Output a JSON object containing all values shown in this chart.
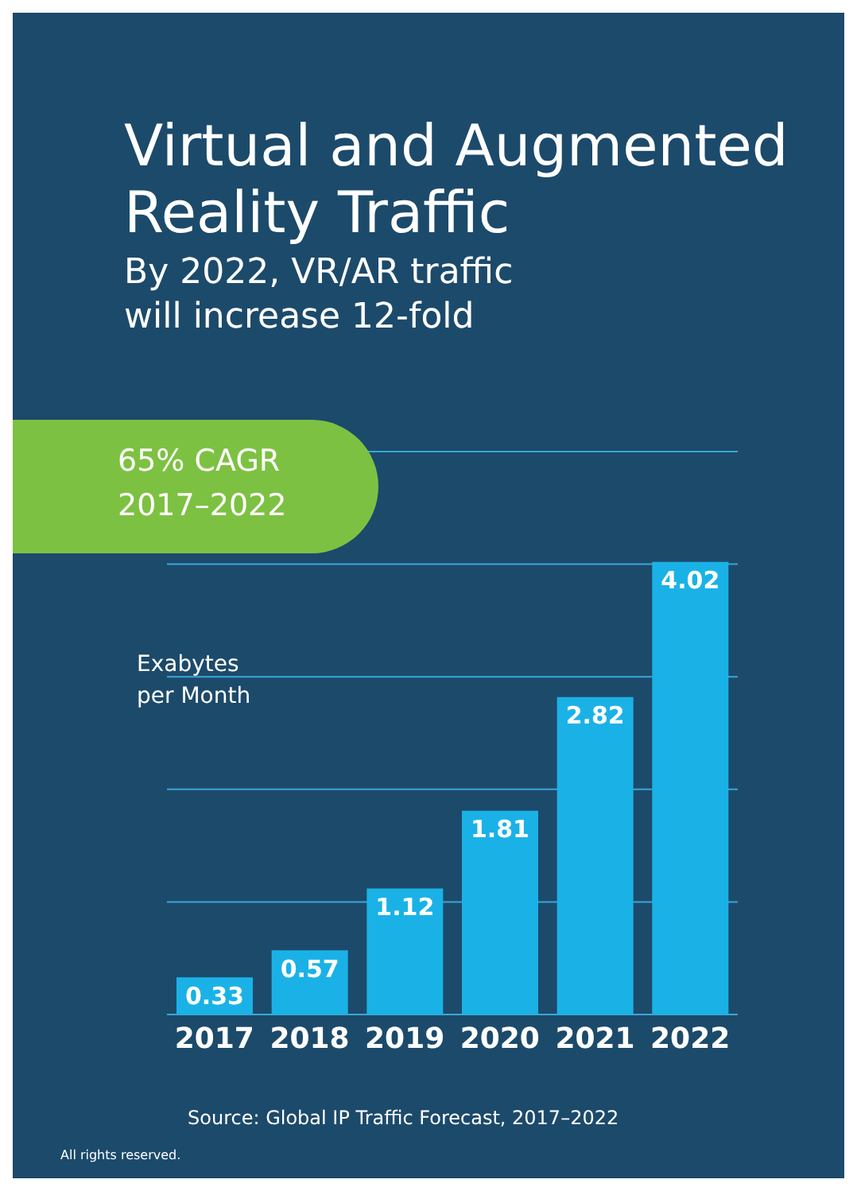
{
  "chart_data": {
    "type": "bar",
    "title": "Virtual and Augmented Reality Traffic",
    "subtitle": "By 2022, VR/AR traffic will increase 12-fold",
    "ylabel": "Exabytes per Month",
    "categories": [
      "2017",
      "2018",
      "2019",
      "2020",
      "2021",
      "2022"
    ],
    "values": [
      0.33,
      0.57,
      1.12,
      1.81,
      2.82,
      4.02
    ],
    "color": "#1ab2e6",
    "ylim": [
      0,
      5
    ],
    "yticks": [
      {
        "value": 0,
        "label": null
      },
      {
        "value": 1,
        "label": null
      },
      {
        "value": 2,
        "label": null
      },
      {
        "value": 3,
        "label": null
      },
      {
        "value": 4,
        "label": null
      },
      {
        "value": 5,
        "label": null
      }
    ],
    "grid": "y",
    "tick_labels": "x",
    "data_labels": true,
    "annotations": [
      "65% CAGR 2017–2022",
      "Source: Global IP Traffic Forecast, 2017–2022",
      "All rights reserved."
    ]
  }
}
